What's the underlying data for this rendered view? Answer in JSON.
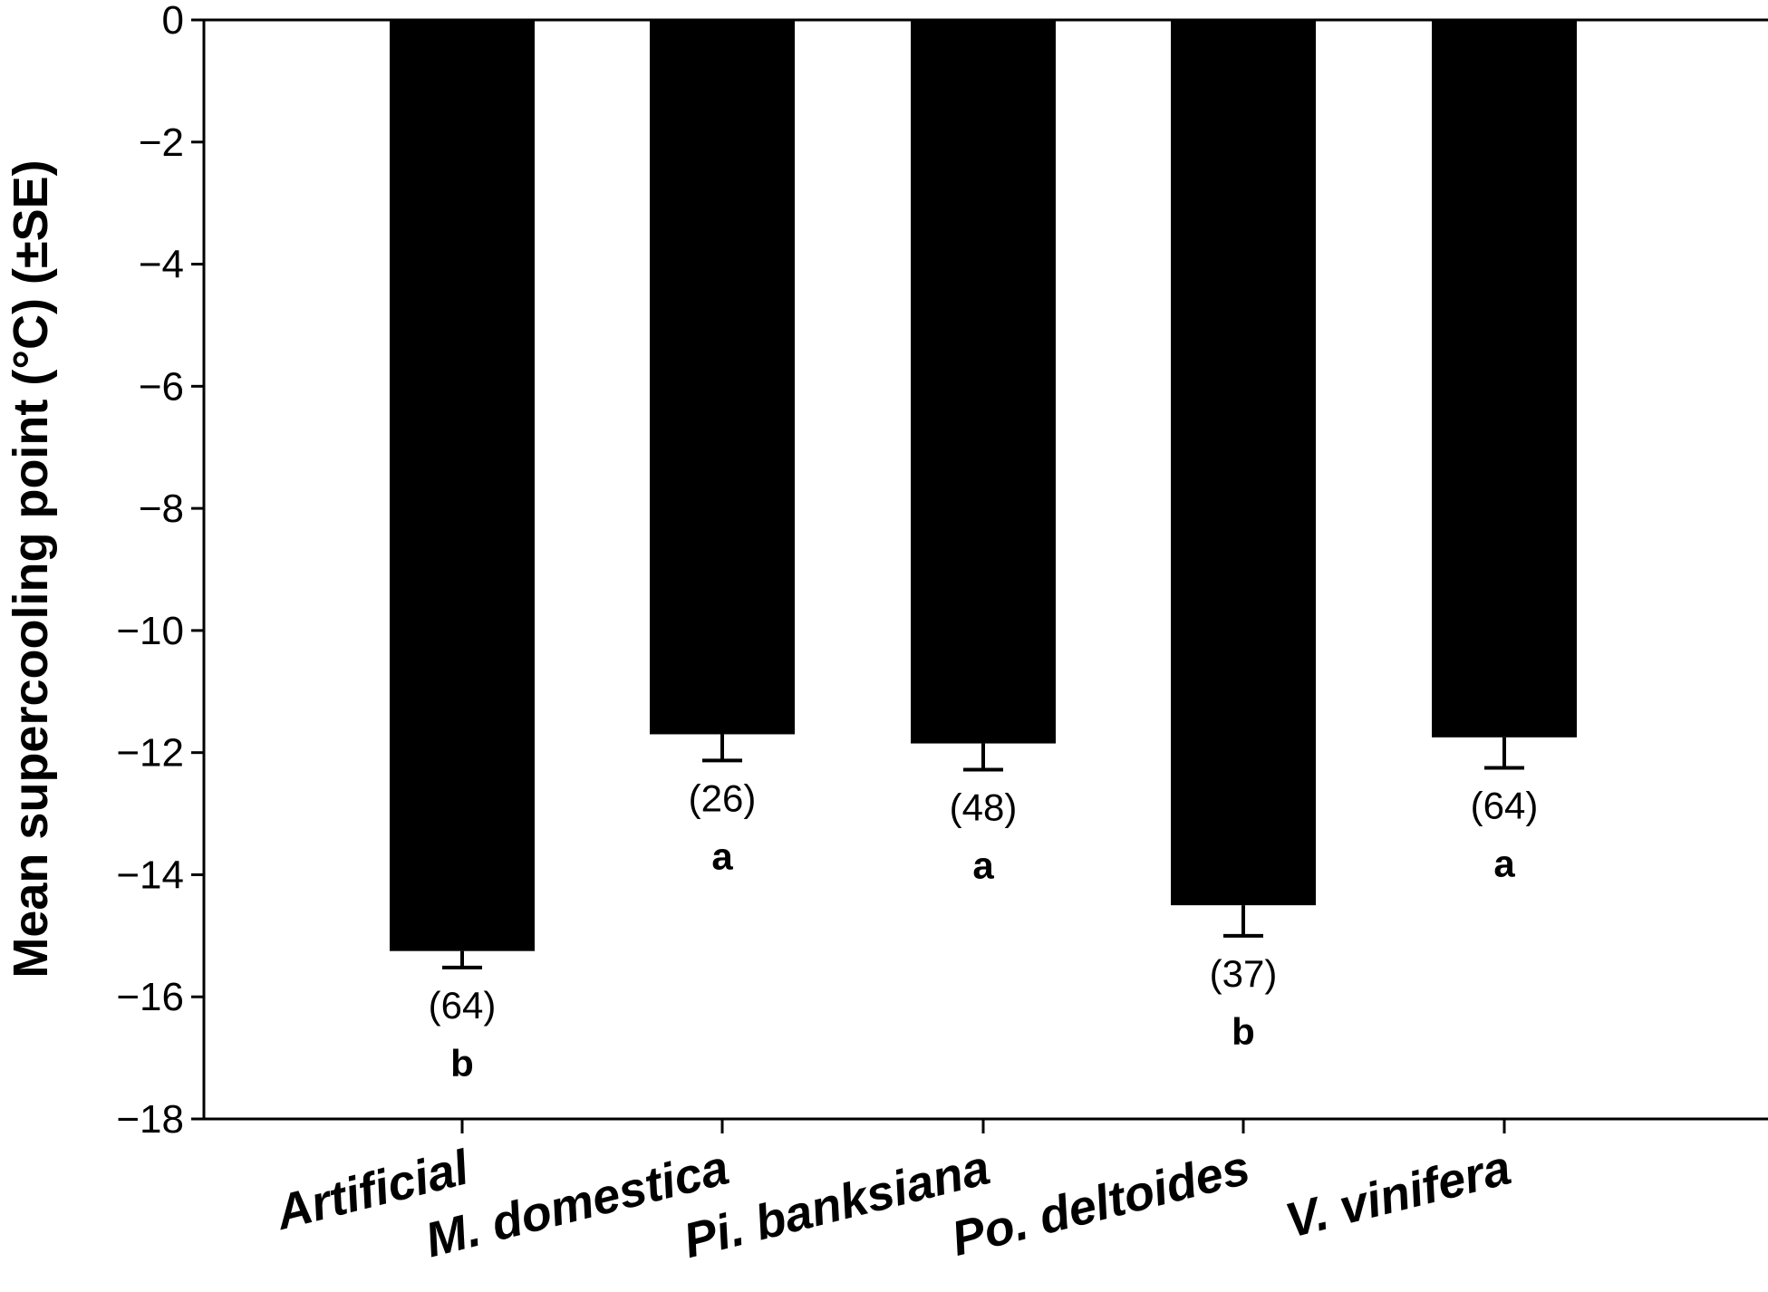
{
  "chart_data": {
    "type": "bar",
    "title": "",
    "xlabel": "",
    "ylabel": "Mean supercooling point (°C) (±SE)",
    "ylim": [
      -18,
      0
    ],
    "yticks": [
      0,
      -2,
      -4,
      -6,
      -8,
      -10,
      -12,
      -14,
      -16,
      -18
    ],
    "ytick_labels": [
      "0",
      "−2",
      "−4",
      "−6",
      "−8",
      "−10",
      "−12",
      "−14",
      "−16",
      "−18"
    ],
    "grid": false,
    "colors": {
      "bar": "#000000",
      "axis": "#000000"
    },
    "categories": [
      "Artificial",
      "M. domestica",
      "Pi. banksiana",
      "Po. deltoides",
      "V. vinifera"
    ],
    "values": [
      -15.25,
      -11.7,
      -11.85,
      -14.5,
      -11.75
    ],
    "se": [
      0.27,
      0.43,
      0.43,
      0.5,
      0.5
    ],
    "n_labels": [
      "(64)",
      "(26)",
      "(48)",
      "(37)",
      "(64)"
    ],
    "sig_letters": [
      "b",
      "a",
      "a",
      "b",
      "a"
    ]
  }
}
